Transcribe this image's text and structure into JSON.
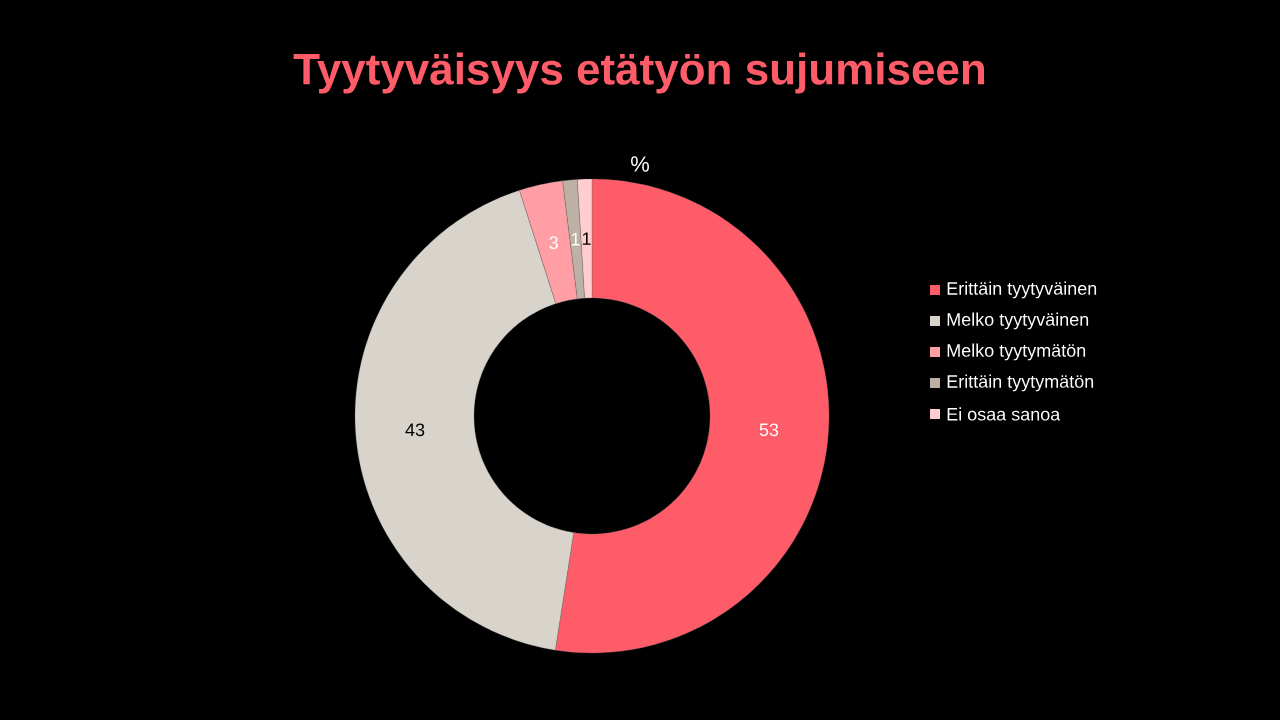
{
  "chart_data": {
    "type": "donut",
    "title": "Tyytyväisyys etätyön sujumiseen",
    "subtitle": "%",
    "categories": [
      "Erittäin tyytyväinen",
      "Melko tyytyväinen",
      "Melko tyytymätön",
      "Erittäin tyytymätön",
      "Ei osaa sanoa"
    ],
    "values": [
      53,
      43,
      3,
      1,
      1
    ],
    "colors": [
      "#ff5c69",
      "#d8d4cc",
      "#ff9ea5",
      "#bdb0a5",
      "#ffccd0"
    ],
    "data_labels": true,
    "legend": "right"
  }
}
